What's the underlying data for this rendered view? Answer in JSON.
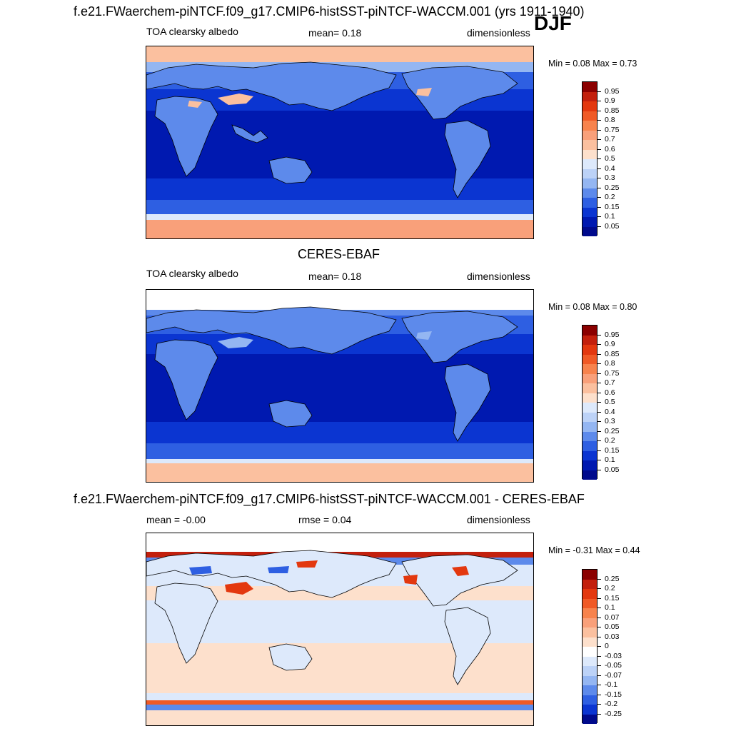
{
  "header": {
    "title": "f.e21.FWaerchem-piNTCF.f09_g17.CMIP6-histSST-piNTCF-WACCM.001 (yrs 1911-1940)",
    "season": "DJF"
  },
  "panels": [
    {
      "id": "model",
      "title": "",
      "variable": "TOA clearsky albedo",
      "stat": "mean=   0.18",
      "units": "dimensionless",
      "minmax": "Min =   0.08 Max =   0.73"
    },
    {
      "id": "obs",
      "title": "CERES-EBAF",
      "variable": "TOA clearsky albedo",
      "stat": "mean=   0.18",
      "units": "dimensionless",
      "minmax": "Min =   0.08 Max =   0.80"
    },
    {
      "id": "diff",
      "title": "f.e21.FWaerchem-piNTCF.f09_g17.CMIP6-histSST-piNTCF-WACCM.001 - CERES-EBAF",
      "variable": "mean =  -0.00",
      "stat": "rmse =   0.04",
      "units": "dimensionless",
      "minmax": "Min =  -0.31 Max =   0.44"
    }
  ],
  "colorbars": {
    "albedo": {
      "labels": [
        "0.95",
        "0.9",
        "0.85",
        "0.8",
        "0.75",
        "0.7",
        "0.6",
        "0.5",
        "0.4",
        "0.3",
        "0.25",
        "0.2",
        "0.15",
        "0.1",
        "0.05"
      ],
      "colors": [
        "#8b0000",
        "#c3200d",
        "#e3380f",
        "#f05a26",
        "#f7834d",
        "#f9a07a",
        "#fbc09f",
        "#fde0cc",
        "#dde9fb",
        "#bcd2f7",
        "#94b6f2",
        "#5d8aeb",
        "#2e5fe2",
        "#0b35d1",
        "#0019b0",
        "#000a8c"
      ]
    },
    "diff": {
      "labels": [
        "0.25",
        "0.2",
        "0.15",
        "0.1",
        "0.07",
        "0.05",
        "0.03",
        "0",
        "-0.03",
        "-0.05",
        "-0.07",
        "-0.1",
        "-0.15",
        "-0.2",
        "-0.25"
      ],
      "colors": [
        "#8b0000",
        "#c3200d",
        "#e3380f",
        "#f05a26",
        "#f7834d",
        "#f9a07a",
        "#fbc09f",
        "#fde0cc",
        "#ffffff",
        "#dde9fb",
        "#bcd2f7",
        "#94b6f2",
        "#5d8aeb",
        "#2e5fe2",
        "#0b35d1",
        "#000a8c"
      ]
    }
  }
}
